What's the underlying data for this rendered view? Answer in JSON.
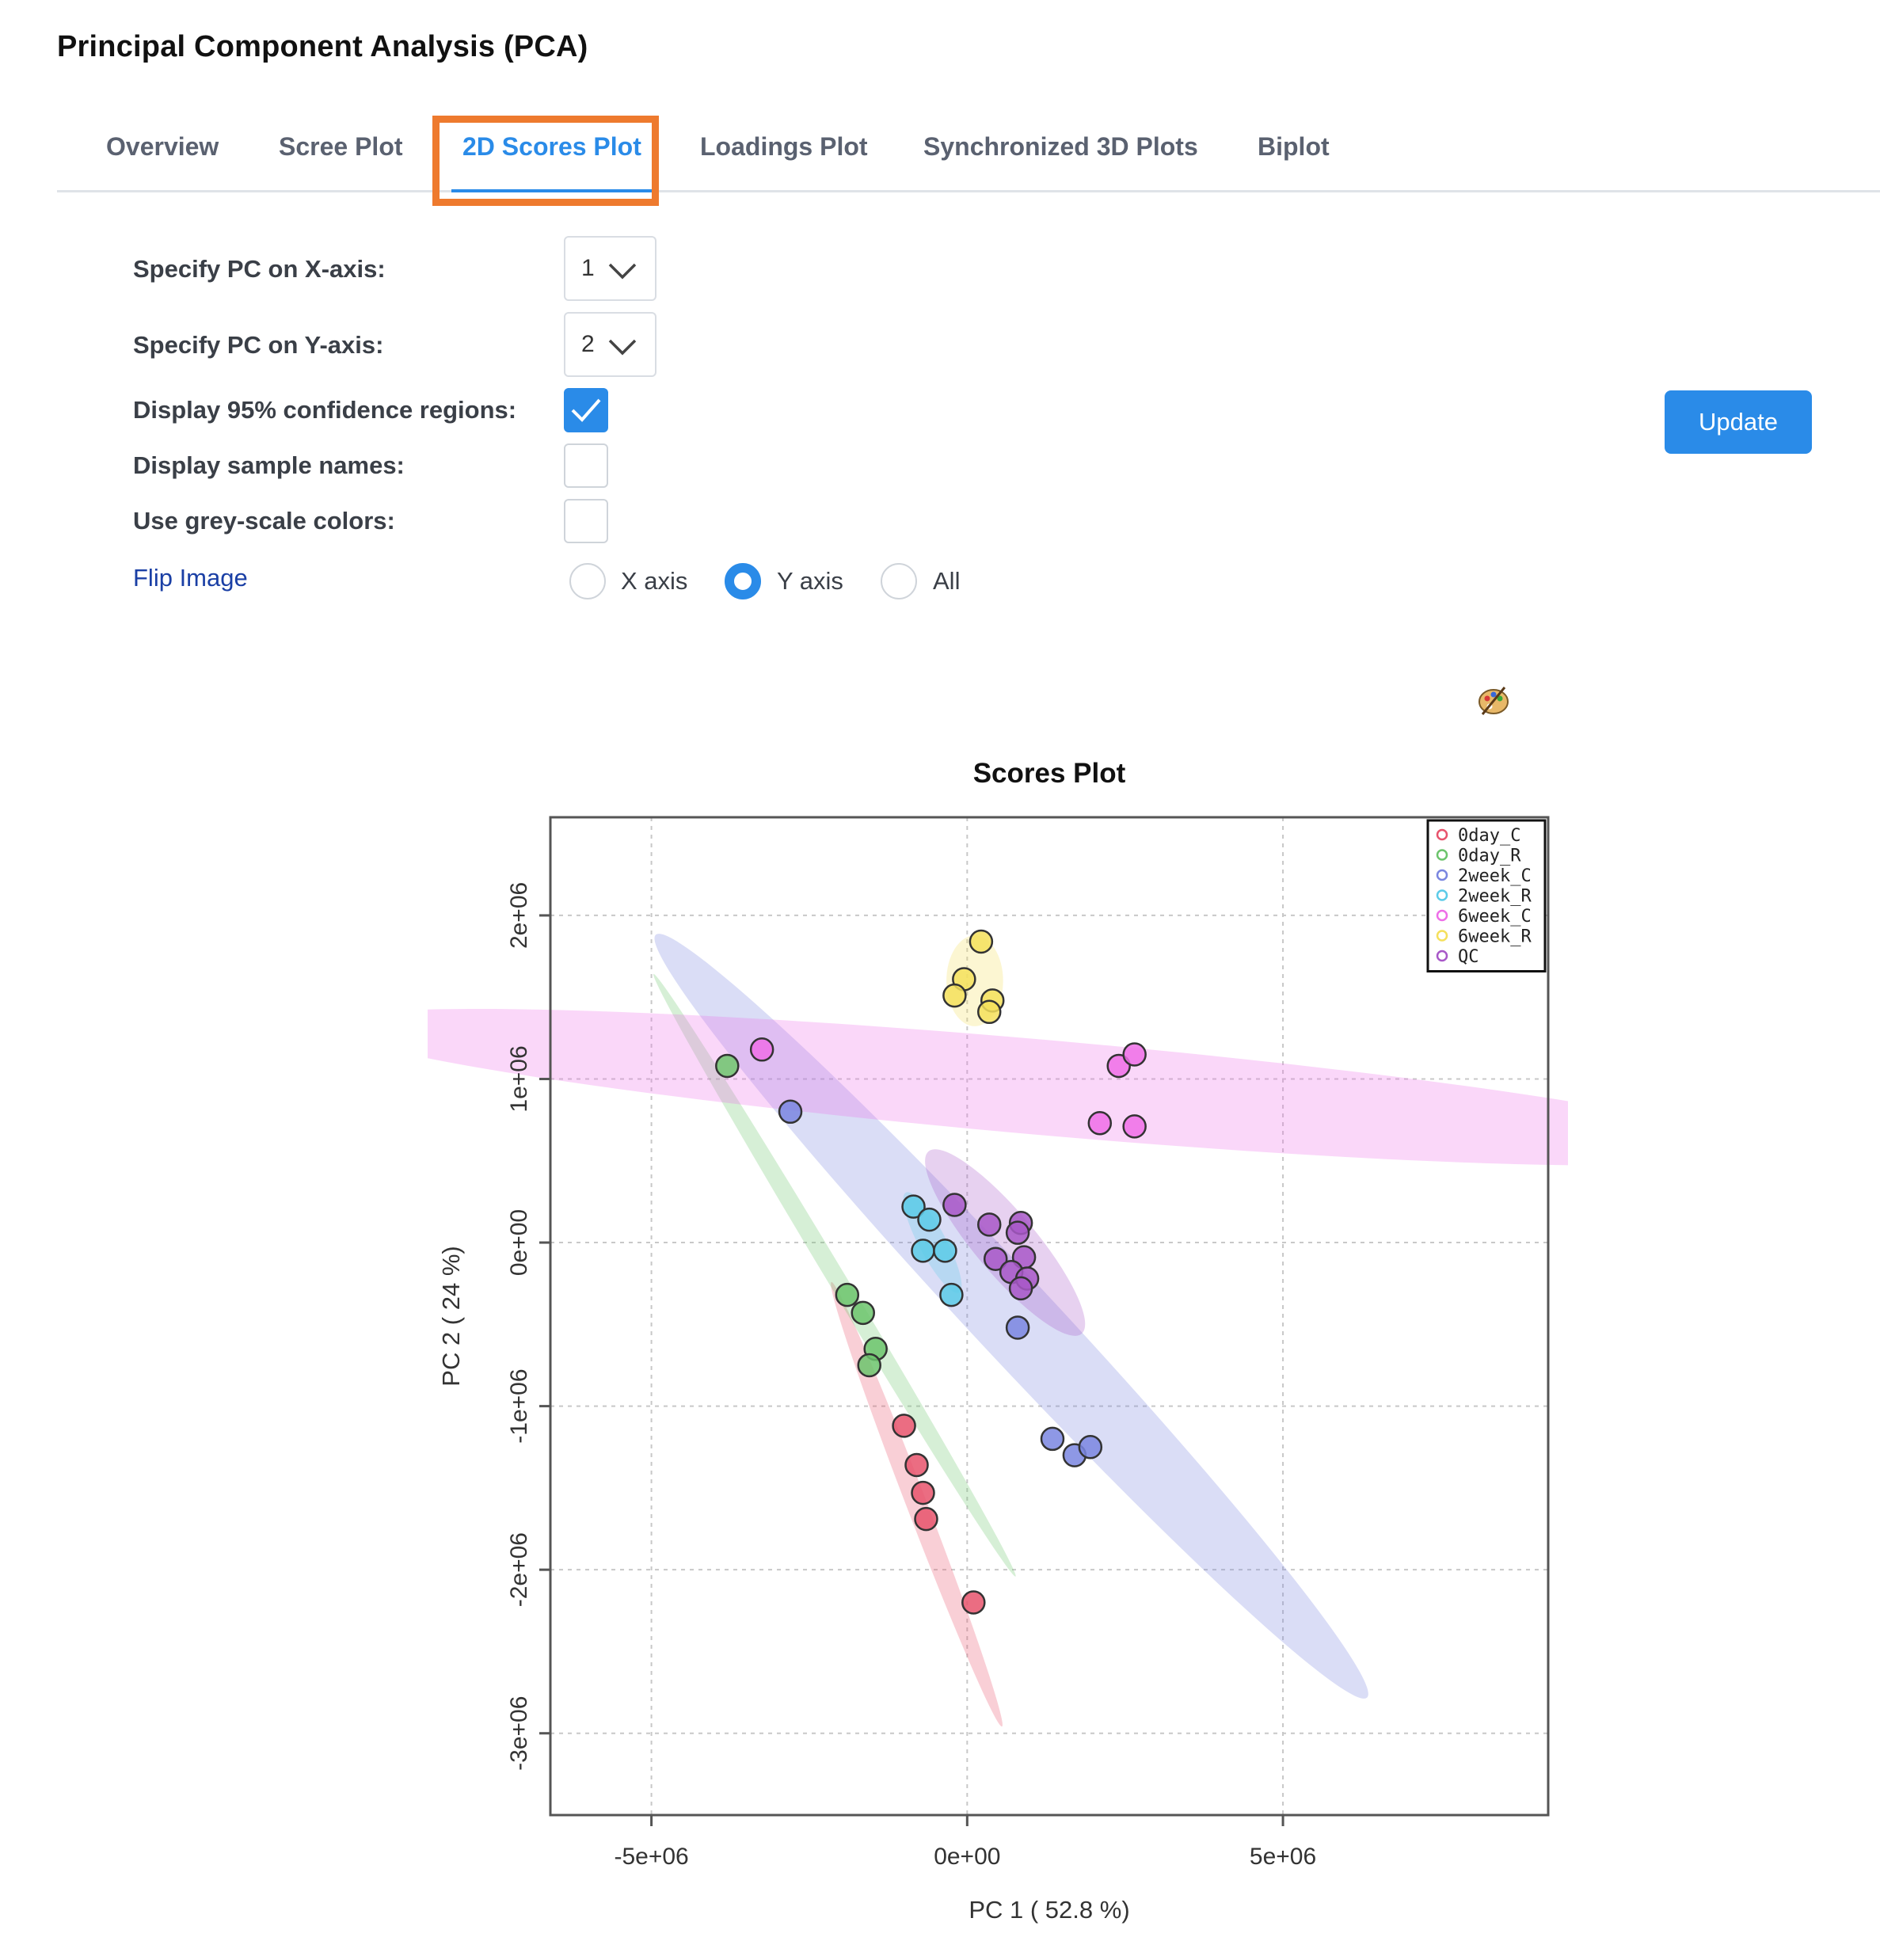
{
  "page": {
    "title": "Principal Component Analysis (PCA)"
  },
  "tabs": [
    {
      "label": "Overview",
      "active": false
    },
    {
      "label": "Scree Plot",
      "active": false
    },
    {
      "label": "2D Scores Plot",
      "active": true
    },
    {
      "label": "Loadings Plot",
      "active": false
    },
    {
      "label": "Synchronized 3D Plots",
      "active": false
    },
    {
      "label": "Biplot",
      "active": false
    }
  ],
  "form": {
    "x_axis": {
      "label": "Specify PC on X-axis:",
      "value": "1"
    },
    "y_axis": {
      "label": "Specify PC on Y-axis:",
      "value": "2"
    },
    "confidence": {
      "label": "Display 95% confidence regions:",
      "checked": true
    },
    "sample_names": {
      "label": "Display sample names:",
      "checked": false
    },
    "grey_scale": {
      "label": "Use grey-scale colors:",
      "checked": false
    },
    "flip": {
      "label": "Flip Image",
      "options": [
        "X axis",
        "Y axis",
        "All"
      ],
      "selected": "Y axis"
    },
    "update_label": "Update"
  },
  "icons": {
    "palette": "palette-icon",
    "dropdown": "chevron-down-icon",
    "check": "check-icon"
  },
  "colors": {
    "accent": "#2a8be8",
    "tab_highlight": "#ee7a2e",
    "0day_C": "#e8536c",
    "0day_R": "#6cc46c",
    "2week_C": "#7a86e0",
    "2week_R": "#5ccbe8",
    "6week_C": "#ee6ee8",
    "6week_R": "#f5e05c",
    "QC": "#a858c8"
  },
  "chart_data": {
    "type": "scatter",
    "title": "Scores Plot",
    "xlabel": "PC 1 ( 52.8 %)",
    "ylabel": "PC 2 ( 24 %)",
    "xlim": [
      -6600000.0,
      9200000.0
    ],
    "ylim": [
      -3500000.0,
      2600000.0
    ],
    "x_ticks": [
      -5000000.0,
      0,
      5000000.0
    ],
    "x_tick_labels": [
      "-5e+06",
      "0e+00",
      "5e+06"
    ],
    "y_ticks": [
      -3000000.0,
      -2000000.0,
      -1000000.0,
      0,
      1000000.0,
      2000000.0
    ],
    "y_tick_labels": [
      "-3e+06",
      "-2e+06",
      "-1e+06",
      "0e+00",
      "1e+06",
      "2e+06"
    ],
    "grid": true,
    "legend_position": "top-right",
    "confidence_ellipses": true,
    "series": [
      {
        "name": "0day_C",
        "points": [
          [
            -1000000.0,
            -1120000.0
          ],
          [
            -800000.0,
            -1360000.0
          ],
          [
            -700000.0,
            -1530000.0
          ],
          [
            -650000.0,
            -1690000.0
          ],
          [
            100000.0,
            -2200000.0
          ]
        ],
        "ellipse": {
          "cx": -800000.0,
          "cy": -1600000.0,
          "rx": 2100000.0,
          "ry": 90000.0,
          "angle_deg": -69
        }
      },
      {
        "name": "0day_R",
        "points": [
          [
            -3800000.0,
            1080000.0
          ],
          [
            -1900000.0,
            -320000.0
          ],
          [
            -1650000.0,
            -430000.0
          ],
          [
            -1450000.0,
            -650000.0
          ],
          [
            -1550000.0,
            -750000.0
          ]
        ],
        "ellipse": {
          "cx": -2100000.0,
          "cy": -200000.0,
          "rx": 3100000.0,
          "ry": 80000.0,
          "angle_deg": -59
        }
      },
      {
        "name": "2week_C",
        "points": [
          [
            -2800000.0,
            800000.0
          ],
          [
            800000.0,
            -520000.0
          ],
          [
            1350000.0,
            -1200000.0
          ],
          [
            1700000.0,
            -1300000.0
          ],
          [
            1950000.0,
            -1250000.0
          ]
        ],
        "ellipse": {
          "cx": 700000.0,
          "cy": -450000.0,
          "rx": 4600000.0,
          "ry": 360000.0,
          "angle_deg": -47
        }
      },
      {
        "name": "2week_R",
        "points": [
          [
            -850000.0,
            220000.0
          ],
          [
            -600000.0,
            140000.0
          ],
          [
            -700000.0,
            -50000.0
          ],
          [
            -350000.0,
            -50000.0
          ],
          [
            -250000.0,
            -320000.0
          ]
        ],
        "ellipse": {
          "cx": -550000.0,
          "cy": 0.0,
          "rx": 500000.0,
          "ry": 120000.0,
          "angle_deg": -62
        }
      },
      {
        "name": "6week_C",
        "points": [
          [
            -3250000.0,
            1180000.0
          ],
          [
            2100000.0,
            730000.0
          ],
          [
            2650000.0,
            710000.0
          ],
          [
            2400000.0,
            1080000.0
          ],
          [
            2650000.0,
            1150000.0
          ]
        ],
        "ellipse": {
          "cx": 1150000.0,
          "cy": 950000.0,
          "rx": 6300000.0,
          "ry": 420000.0,
          "angle_deg": -5
        }
      },
      {
        "name": "6week_R",
        "points": [
          [
            220000.0,
            1840000.0
          ],
          [
            -50000.0,
            1610000.0
          ],
          [
            -200000.0,
            1510000.0
          ],
          [
            400000.0,
            1480000.0
          ],
          [
            350000.0,
            1410000.0
          ]
        ],
        "ellipse": {
          "cx": 120000.0,
          "cy": 1600000.0,
          "rx": 250000.0,
          "ry": 400000.0,
          "angle_deg": 0
        }
      },
      {
        "name": "QC",
        "points": [
          [
            -200000.0,
            230000.0
          ],
          [
            350000.0,
            110000.0
          ],
          [
            850000.0,
            120000.0
          ],
          [
            800000.0,
            60000.0
          ],
          [
            450000.0,
            -100000.0
          ],
          [
            900000.0,
            -90000.0
          ],
          [
            700000.0,
            -180000.0
          ],
          [
            950000.0,
            -220000.0
          ],
          [
            850000.0,
            -280000.0
          ]
        ],
        "ellipse": {
          "cx": 600000.0,
          "cy": 0.0,
          "rx": 1050000.0,
          "ry": 270000.0,
          "angle_deg": -50
        }
      }
    ]
  }
}
